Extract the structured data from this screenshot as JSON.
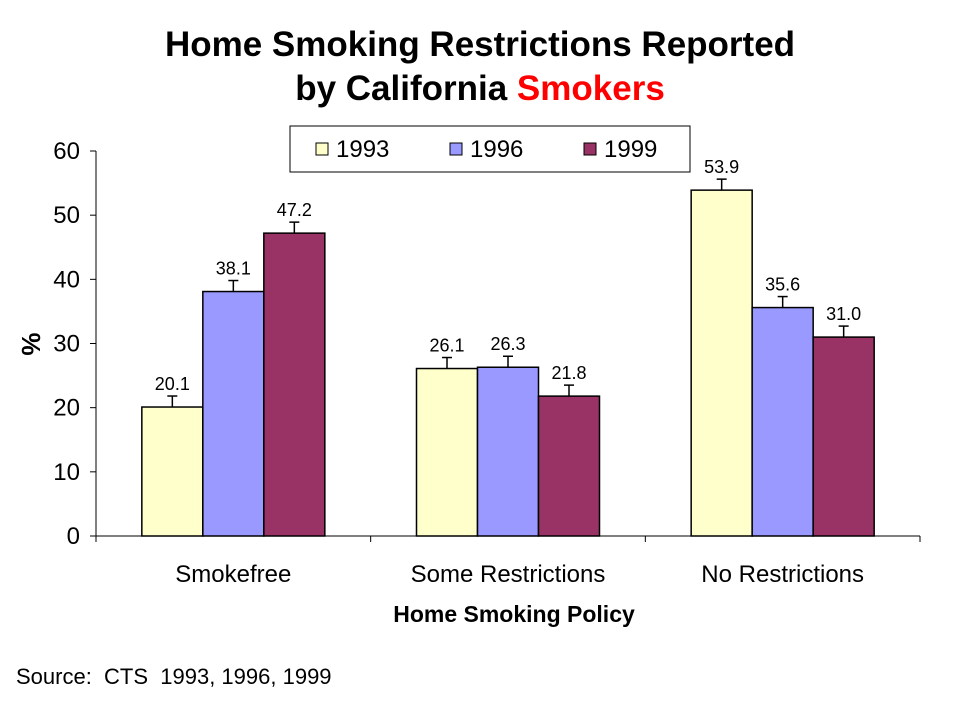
{
  "title": {
    "line1": "Home Smoking Restrictions Reported",
    "line2_prefix": "by California ",
    "line2_highlight": "Smokers"
  },
  "source": "Source:  CTS  1993, 1996, 1999",
  "colors": {
    "title_highlight": "#ff0000",
    "bar_1993": "#ffffcc",
    "bar_1996": "#9999ff",
    "bar_1999": "#993366"
  },
  "chart_data": {
    "type": "bar",
    "title": "",
    "xlabel": "Home Smoking Policy",
    "ylabel": "%",
    "ylim": [
      0,
      60
    ],
    "yticks": [
      0,
      10,
      20,
      30,
      40,
      50,
      60
    ],
    "categories": [
      "Smokefree",
      "Some Restrictions",
      "No Restrictions"
    ],
    "series": [
      {
        "name": "1993",
        "color": "#ffffcc",
        "values": [
          20.1,
          26.1,
          53.9
        ],
        "labels": [
          "20.1",
          "26.1",
          "53.9"
        ]
      },
      {
        "name": "1996",
        "color": "#9999ff",
        "values": [
          38.1,
          26.3,
          35.6
        ],
        "labels": [
          "38.1",
          "26.3",
          "35.6"
        ]
      },
      {
        "name": "1999",
        "color": "#993366",
        "values": [
          47.2,
          21.8,
          31.0
        ],
        "labels": [
          "47.2",
          "21.8",
          "31.0"
        ]
      }
    ],
    "error_bars": true,
    "grid": false,
    "legend_position": "top-center"
  }
}
